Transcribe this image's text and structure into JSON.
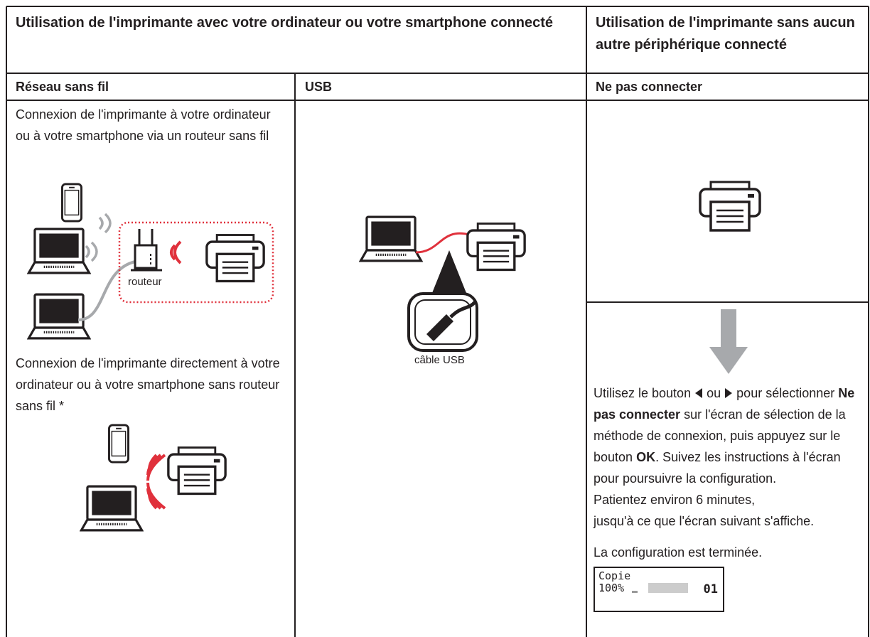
{
  "header": {
    "left": "Utilisation de l'imprimante avec votre ordinateur ou votre smartphone connecté",
    "right": "Utilisation de l'imprimante sans aucun autre périphérique connecté"
  },
  "columns": [
    "Réseau sans fil",
    "USB",
    "Ne pas connecter"
  ],
  "wireless": {
    "router_text": "Connexion de l'imprimante à votre ordinateur ou à votre smartphone via un routeur sans fil",
    "router_label": "routeur",
    "direct_text": "Connexion de l'imprimante directement à votre ordinateur ou à votre smartphone sans routeur sans fil *"
  },
  "usb": {
    "cable_label": "câble USB"
  },
  "no_connection": {
    "instructions": [
      "Utilisez le bouton",
      "ou",
      "pour sélectionner",
      "Ne pas connecter",
      "sur l'écran de sélection de la méthode de connexion, puis appuyez sur le bouton",
      "OK",
      ". Suivez les instructions à l'écran pour poursuivre la configuration.",
      "Patientez environ 6 minutes,",
      "jusqu'à ce que l'écran suivant s'affiche."
    ],
    "done": "La configuration est terminée.",
    "lcd": {
      "mode": "Copie",
      "zoom": "100%",
      "copies": "01"
    }
  }
}
